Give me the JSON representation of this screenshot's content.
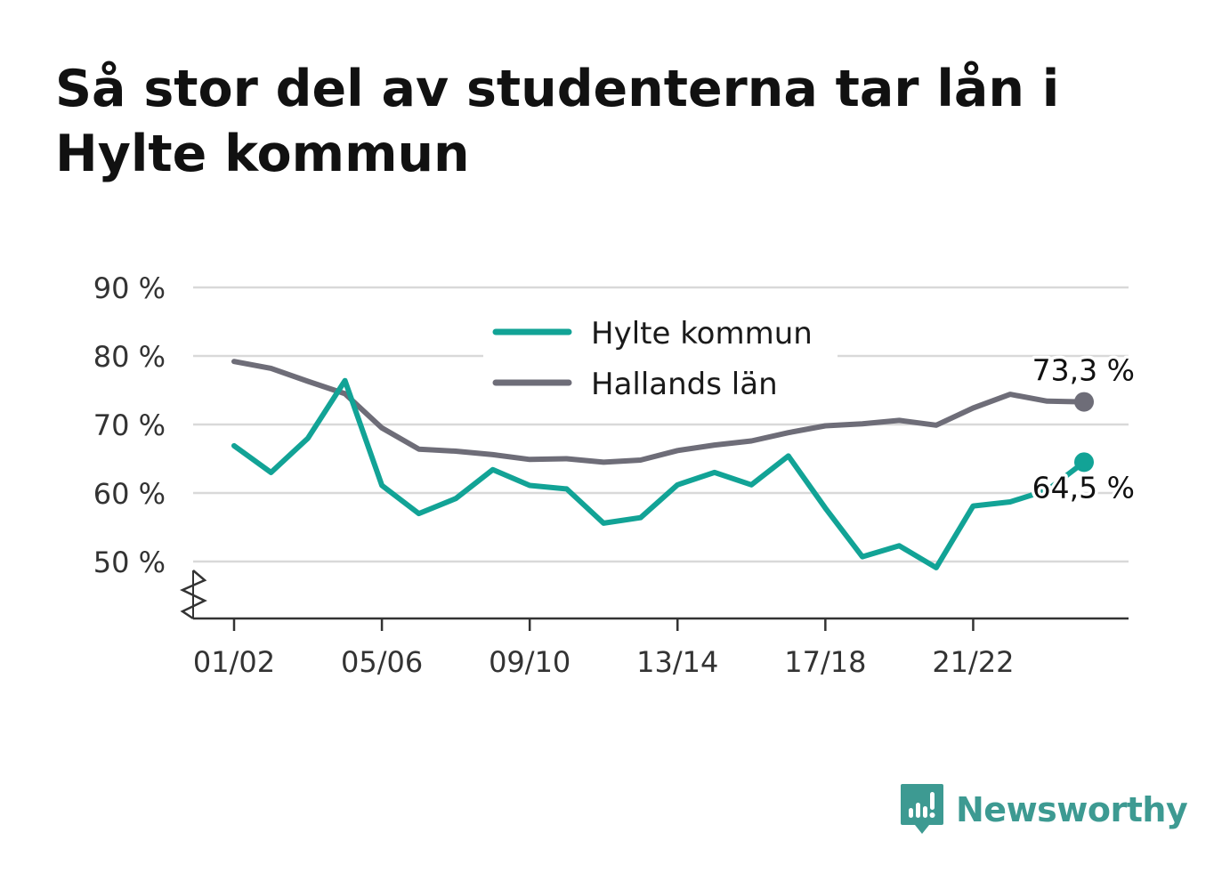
{
  "title": "Så stor del av studenterna tar lån i Hylte kommun",
  "colors": {
    "hylte": "#12a396",
    "halland": "#6e6d78",
    "grid": "#d9d9d9",
    "axis": "#333333",
    "brand": "#3d9a92"
  },
  "brand": {
    "name": "Newsworthy",
    "icon": "speech-bubble-bar-chart-icon"
  },
  "chart_data": {
    "type": "line",
    "title": "Så stor del av studenterna tar lån i Hylte kommun",
    "x": [
      "01/02",
      "02/03",
      "03/04",
      "04/05",
      "05/06",
      "06/07",
      "07/08",
      "08/09",
      "09/10",
      "10/11",
      "11/12",
      "12/13",
      "13/14",
      "14/15",
      "15/16",
      "16/17",
      "17/18",
      "18/19",
      "19/20",
      "20/21",
      "21/22",
      "22/23",
      "23/24",
      "24/25"
    ],
    "x_tick_labels": [
      "01/02",
      "05/06",
      "09/10",
      "13/14",
      "17/18",
      "21/22"
    ],
    "y_ticks": [
      50,
      60,
      70,
      80,
      90
    ],
    "y_tick_labels": [
      "50 %",
      "60 %",
      "70 %",
      "80 %",
      "90 %"
    ],
    "ylim": [
      42,
      90
    ],
    "axis_break": true,
    "grid": true,
    "legend_position": "top-center",
    "series": [
      {
        "name": "Hylte kommun",
        "color": "#12a396",
        "values": [
          66.9,
          63.0,
          68.0,
          76.4,
          61.1,
          57.0,
          59.2,
          63.4,
          61.1,
          60.6,
          55.6,
          56.4,
          61.2,
          63.0,
          61.2,
          65.4,
          57.8,
          50.7,
          52.3,
          49.1,
          58.1,
          58.7,
          60.4,
          64.5
        ],
        "end_label": "64,5 %"
      },
      {
        "name": "Hallands län",
        "color": "#6e6d78",
        "values": [
          79.2,
          78.2,
          76.3,
          74.5,
          69.5,
          66.4,
          66.1,
          65.6,
          64.9,
          65.0,
          64.5,
          64.8,
          66.2,
          67.0,
          67.6,
          68.8,
          69.8,
          70.1,
          70.6,
          69.9,
          72.4,
          74.4,
          73.4,
          73.3
        ],
        "end_label": "73,3 %"
      }
    ]
  }
}
